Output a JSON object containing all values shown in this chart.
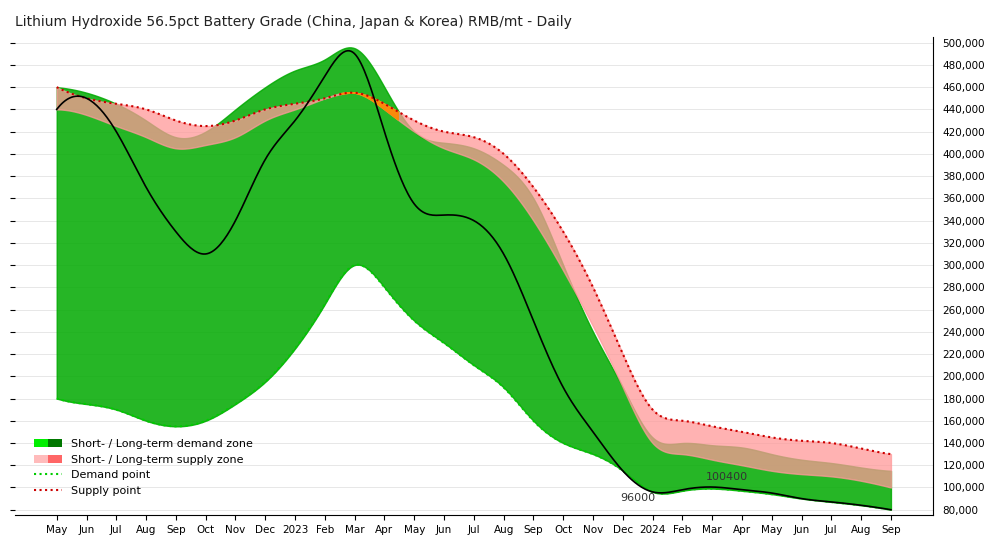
{
  "title": "Lithium Hydroxide 56.5pct Battery Grade (China, Japan & Korea) RMB/mt - Daily",
  "title_fontsize": 10,
  "ylim": [
    75000,
    505000
  ],
  "yticks": [
    80000,
    100000,
    120000,
    140000,
    160000,
    180000,
    200000,
    220000,
    240000,
    260000,
    280000,
    300000,
    320000,
    340000,
    360000,
    380000,
    400000,
    420000,
    440000,
    460000,
    480000,
    500000
  ],
  "bg_color": "#ffffff",
  "demand_fill_color": "#00aa00",
  "supply_fill_color": "#ff9999",
  "orange_fill_color": "#ff8800",
  "price_line_color": "#000000",
  "demand_dot_color": "#00cc00",
  "supply_dot_color": "#cc0000",
  "annotation_color": "#333333"
}
